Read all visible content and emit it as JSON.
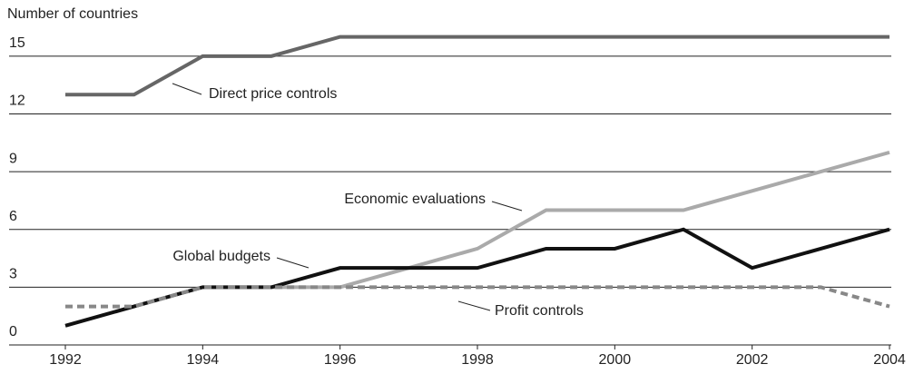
{
  "chart_data": {
    "type": "line",
    "y_label": "Number of countries",
    "x": [
      1992,
      1993,
      1994,
      1995,
      1996,
      1997,
      1998,
      1999,
      2000,
      2001,
      2002,
      2003,
      2004
    ],
    "series": [
      {
        "name": "Direct price controls",
        "color": "#666666",
        "values": [
          13,
          13,
          15,
          15,
          16,
          16,
          16,
          16,
          16,
          16,
          16,
          16,
          16
        ]
      },
      {
        "name": "Economic evaluations",
        "color": "#aaaaaa",
        "values": [
          null,
          null,
          null,
          3,
          3,
          4,
          5,
          7,
          7,
          7,
          8,
          9,
          10
        ]
      },
      {
        "name": "Global budgets",
        "color": "#111111",
        "values": [
          1,
          2,
          3,
          3,
          4,
          4,
          4,
          5,
          5,
          6,
          4,
          5,
          6
        ]
      },
      {
        "name": "Profit controls",
        "color": "#888888",
        "dashed": true,
        "values": [
          2,
          2,
          3,
          3,
          3,
          3,
          3,
          3,
          3,
          3,
          3,
          3,
          2
        ]
      }
    ],
    "xlim": [
      1992,
      2004
    ],
    "xticks": [
      1992,
      1994,
      1996,
      1998,
      2000,
      2002,
      2004
    ],
    "ylim": [
      0,
      16.5
    ],
    "yticks": [
      0,
      3,
      6,
      9,
      12,
      15
    ],
    "grid": true
  }
}
